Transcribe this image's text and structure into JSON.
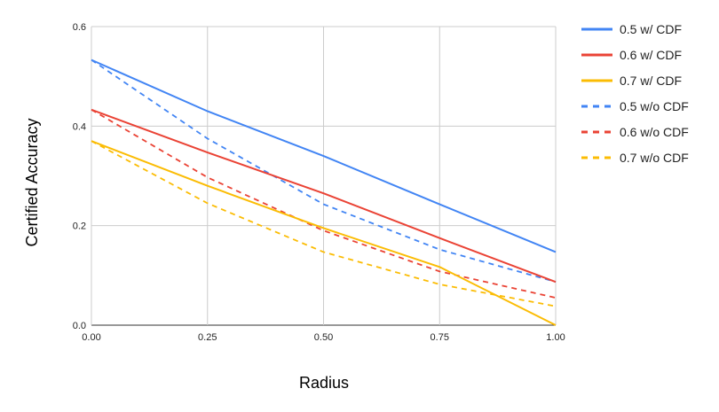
{
  "chart_data": {
    "type": "line",
    "title": "",
    "xlabel": "Radius",
    "ylabel": "Certified Accuracy",
    "x": [
      0.0,
      0.25,
      0.5,
      0.75,
      1.0
    ],
    "xlim": [
      0,
      1
    ],
    "ylim": [
      0,
      0.6
    ],
    "x_ticks": [
      0,
      0.25,
      0.5,
      0.75,
      1.0
    ],
    "x_tick_labels": [
      "0.00",
      "0.25",
      "0.50",
      "0.75",
      "1.00"
    ],
    "y_ticks": [
      0,
      0.2,
      0.4,
      0.6
    ],
    "y_tick_labels": [
      "0.0",
      "0.2",
      "0.4",
      "0.6"
    ],
    "grid": true,
    "legend_position": "right",
    "series": [
      {
        "name": "0.5 w/ CDF",
        "color": "#4285f4",
        "style": "solid",
        "values": [
          0.533,
          0.43,
          0.34,
          0.243,
          0.147
        ]
      },
      {
        "name": "0.6 w/ CDF",
        "color": "#ea4335",
        "style": "solid",
        "values": [
          0.433,
          0.347,
          0.265,
          0.175,
          0.087
        ]
      },
      {
        "name": "0.7 w/ CDF",
        "color": "#fbbc04",
        "style": "solid",
        "values": [
          0.37,
          0.28,
          0.195,
          0.117,
          0.0
        ]
      },
      {
        "name": "0.5 w/o CDF",
        "color": "#4285f4",
        "style": "dashed",
        "values": [
          0.533,
          0.375,
          0.243,
          0.152,
          0.087
        ]
      },
      {
        "name": "0.6 w/o CDF",
        "color": "#ea4335",
        "style": "dashed",
        "values": [
          0.433,
          0.297,
          0.19,
          0.108,
          0.055
        ]
      },
      {
        "name": "0.7 w/o CDF",
        "color": "#fbbc04",
        "style": "dashed",
        "values": [
          0.37,
          0.245,
          0.147,
          0.082,
          0.038
        ]
      }
    ]
  }
}
